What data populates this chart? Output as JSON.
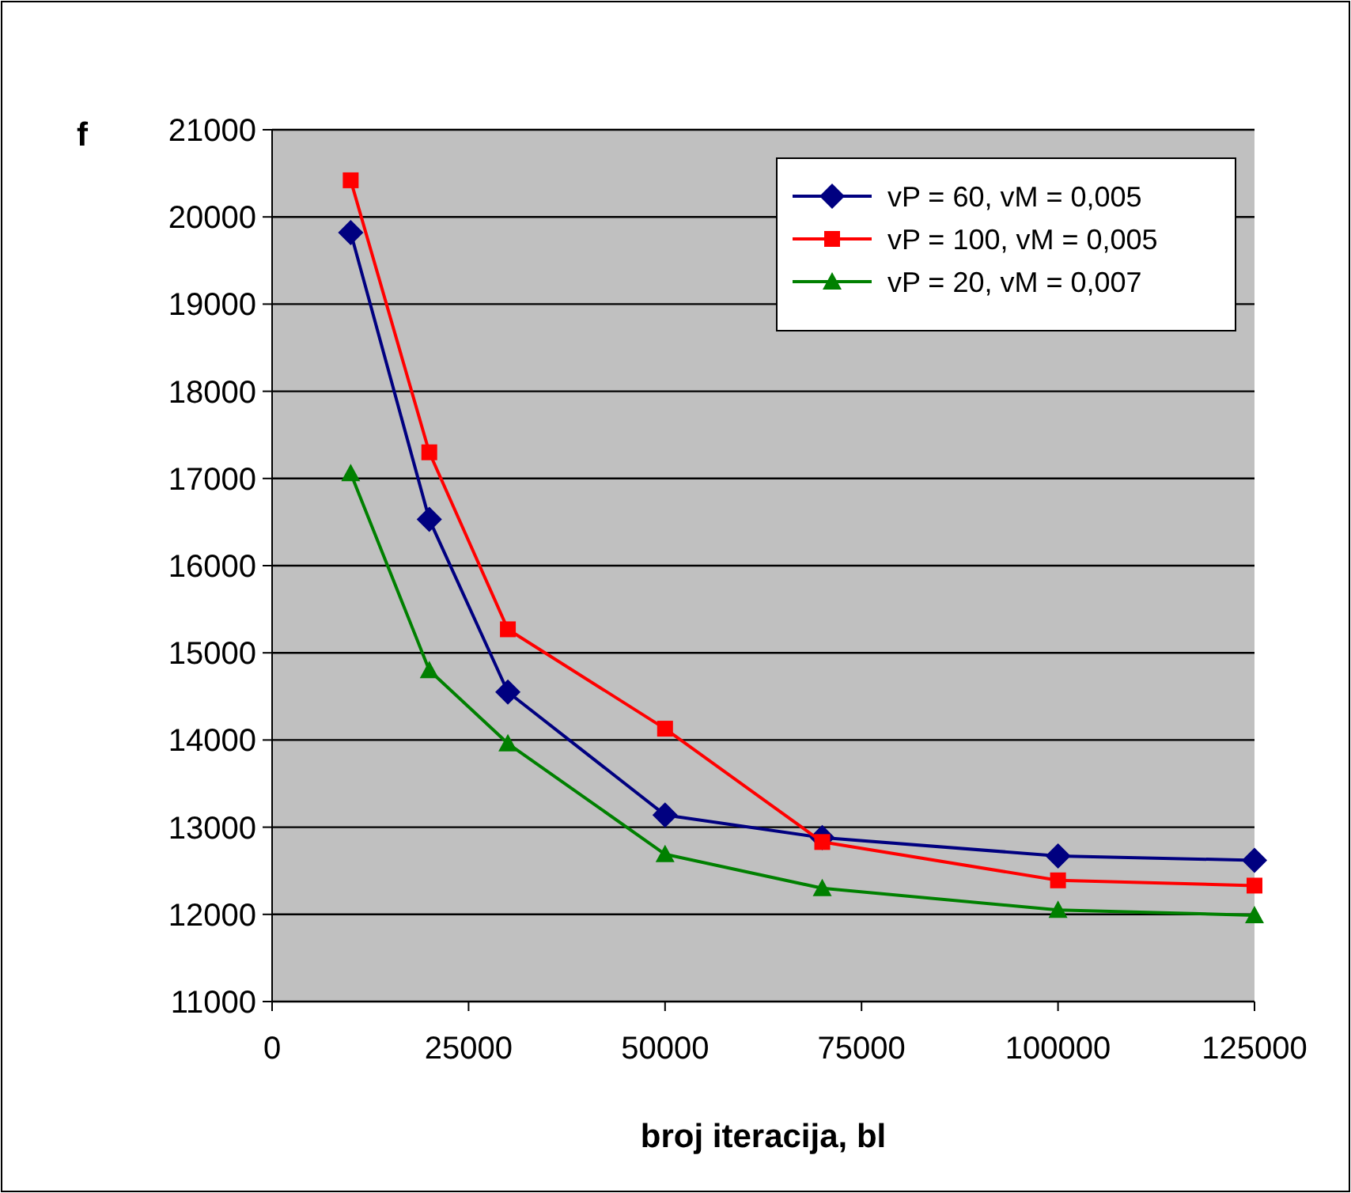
{
  "chart_data": {
    "type": "line",
    "ylabel": "f",
    "xlabel": "broj iteracija, bl",
    "xlim": [
      0,
      125000
    ],
    "xticks": [
      0,
      25000,
      50000,
      75000,
      100000,
      125000
    ],
    "ylim": [
      11000,
      21000
    ],
    "yticks": [
      11000,
      12000,
      13000,
      14000,
      15000,
      16000,
      17000,
      18000,
      19000,
      20000,
      21000
    ],
    "grid": "y",
    "legend": "top right",
    "line_style": "solid",
    "x": [
      10000,
      20000,
      30000,
      50000,
      70000,
      100000,
      125000
    ],
    "series": [
      {
        "name": "vP = 60, vM = 0,005",
        "color": "#000080",
        "marker": "diamond",
        "values": [
          19820,
          16530,
          14550,
          13140,
          12880,
          12670,
          12620
        ]
      },
      {
        "name": "vP = 100, vM = 0,005",
        "color": "#ff0000",
        "marker": "square",
        "values": [
          20420,
          17300,
          15270,
          14130,
          12830,
          12390,
          12330
        ]
      },
      {
        "name": "vP = 20, vM = 0,007",
        "color": "#008000",
        "marker": "triangle",
        "values": [
          17060,
          14800,
          13960,
          12690,
          12300,
          12050,
          11990
        ]
      }
    ]
  }
}
